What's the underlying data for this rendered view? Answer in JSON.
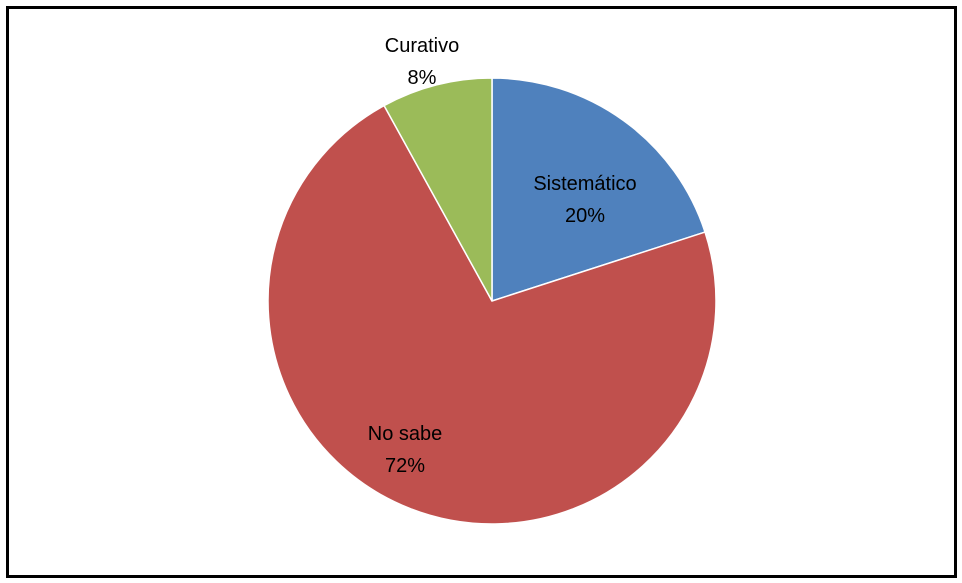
{
  "chart_data": {
    "type": "pie",
    "categories": [
      "Sistemático",
      "No sabe",
      "Curativo"
    ],
    "values": [
      20,
      72,
      8
    ],
    "labels": [
      {
        "name": "Sistemático",
        "percent": "20%"
      },
      {
        "name": "No sabe",
        "percent": "72%"
      },
      {
        "name": "Curativo",
        "percent": "8%"
      }
    ],
    "colors": [
      "#4F81BD",
      "#C0504D",
      "#9BBB59"
    ],
    "title": "",
    "legend": "none"
  }
}
